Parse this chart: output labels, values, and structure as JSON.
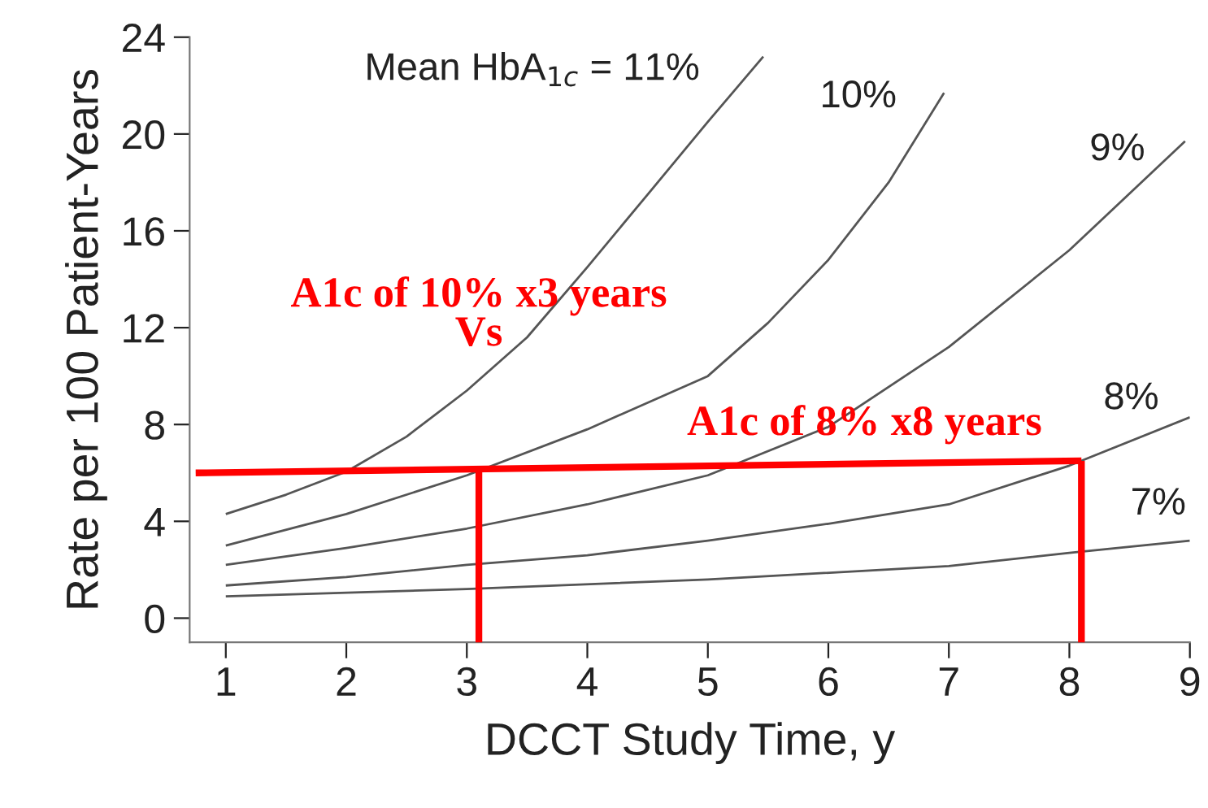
{
  "chart_data": {
    "type": "line",
    "xlabel": "DCCT Study Time, y",
    "ylabel": "Rate per 100 Patient-Years",
    "xlim": [
      0.7,
      9.0
    ],
    "ylim": [
      -1,
      24
    ],
    "xticks": [
      1,
      2,
      3,
      4,
      5,
      6,
      7,
      8,
      9
    ],
    "yticks": [
      0,
      4,
      8,
      12,
      16,
      20,
      24
    ],
    "grid": false,
    "legend": false,
    "marker": "none",
    "line_style": "solid",
    "series": [
      {
        "name": "Mean HbA$_{1c}$ = 11%",
        "color": "#555555",
        "x": [
          1,
          1.5,
          2,
          2.5,
          3,
          3.5,
          4,
          4.5,
          5,
          5.46
        ],
        "values": [
          4.3,
          5.1,
          6.05,
          7.5,
          9.4,
          11.6,
          14.5,
          17.5,
          20.5,
          23.2
        ]
      },
      {
        "name": "10%",
        "color": "#555555",
        "x": [
          1,
          2,
          3,
          4,
          5,
          5.5,
          6,
          6.5,
          6.96
        ],
        "values": [
          3.0,
          4.3,
          5.9,
          7.8,
          10.0,
          12.2,
          14.8,
          18.0,
          21.7
        ]
      },
      {
        "name": "9%",
        "color": "#555555",
        "x": [
          1,
          2,
          3,
          4,
          5,
          6,
          7,
          8,
          8.96
        ],
        "values": [
          2.2,
          2.9,
          3.7,
          4.7,
          5.9,
          7.9,
          11.2,
          15.2,
          19.7
        ]
      },
      {
        "name": "8%",
        "color": "#555555",
        "x": [
          1,
          2,
          3,
          4,
          5,
          6,
          7,
          8,
          9
        ],
        "values": [
          1.35,
          1.7,
          2.2,
          2.6,
          3.2,
          3.9,
          4.7,
          6.3,
          8.3
        ]
      },
      {
        "name": "7%",
        "color": "#555555",
        "x": [
          1,
          3,
          5,
          7,
          8,
          9
        ],
        "values": [
          0.9,
          1.2,
          1.6,
          2.15,
          2.7,
          3.2
        ]
      },
      {
        "color": "#ff0000",
        "x": [
          3.1,
          3.1
        ],
        "values": [
          -1,
          6.05
        ]
      },
      {
        "color": "#ff0000",
        "x": [
          0.75,
          8.1
        ],
        "values": [
          6.0,
          6.5
        ]
      },
      {
        "color": "#ff0000",
        "x": [
          8.1,
          8.1
        ],
        "values": [
          6.5,
          -1
        ]
      }
    ],
    "annotations": [
      "A1c of 10% x3 years\nVs",
      "A1c of 8% x8 years"
    ]
  }
}
